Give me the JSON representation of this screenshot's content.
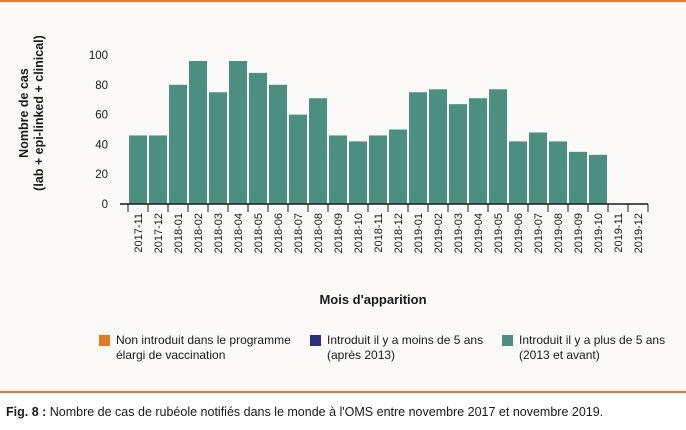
{
  "chart_data": {
    "type": "bar",
    "ylabel_line1": "Nombre de cas",
    "ylabel_line2": "(lab + epi-linked + clinical)",
    "xlabel": "Mois d'apparition",
    "ylim": [
      0,
      100
    ],
    "yticks": [
      0,
      20,
      40,
      60,
      80,
      100
    ],
    "categories": [
      "2017-11",
      "2017-12",
      "2018-01",
      "2018-02",
      "2018-03",
      "2018-04",
      "2018-05",
      "2018-06",
      "2018-07",
      "2018-08",
      "2018-09",
      "2018-10",
      "2018-11",
      "2018-12",
      "2019-01",
      "2019-02",
      "2019-03",
      "2019-04",
      "2019-05",
      "2019-06",
      "2019-07",
      "2019-08",
      "2019-09",
      "2019-10",
      "2019-11",
      "2019-12"
    ],
    "series": [
      {
        "name": "Non introduit dans le programme élargi de vaccination",
        "color": "#e07b22",
        "values": [
          0,
          0,
          0,
          0,
          0,
          0,
          0,
          0,
          0,
          0,
          0,
          0,
          0,
          0,
          0,
          0,
          0,
          0,
          0,
          0,
          0,
          0,
          0,
          0,
          0,
          0
        ]
      },
      {
        "name": "Introduit il y a moins de 5 ans (après 2013)",
        "color": "#2b2d7e",
        "values": [
          0,
          0,
          0,
          0,
          0,
          0,
          0,
          0,
          0,
          0,
          0,
          0,
          0,
          0,
          0,
          0,
          0,
          0,
          0,
          0,
          0,
          0,
          0,
          0,
          0,
          0
        ]
      },
      {
        "name": "Introduit il y a plus de 5 ans (2013 et avant)",
        "color": "#4a8f80",
        "values": [
          46,
          46,
          80,
          96,
          75,
          96,
          88,
          80,
          60,
          71,
          46,
          42,
          46,
          50,
          75,
          77,
          67,
          71,
          77,
          42,
          48,
          42,
          35,
          33,
          0,
          0
        ]
      }
    ],
    "stacked": true,
    "grid": false,
    "legend_position": "bottom"
  },
  "legend": {
    "item1_line1": "Non introduit dans le programme",
    "item1_line2": "élargi de vaccination",
    "item2_line1": "Introduit il y a moins de 5 ans",
    "item2_line2": "(après 2013)",
    "item3_line1": "Introduit il y a plus de 5 ans",
    "item3_line2": "(2013 et avant)"
  },
  "caption": {
    "label": "Fig. 8 :",
    "text": " Nombre de cas de rubéole notifiés dans le monde à l'OMS entre novembre 2017 et novembre 2019."
  }
}
